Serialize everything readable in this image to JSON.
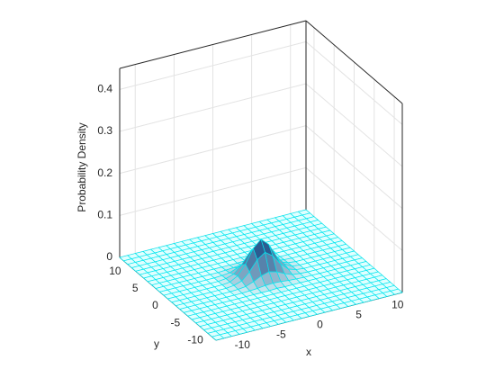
{
  "chart_data": {
    "type": "surface",
    "xlabel": "x",
    "ylabel": "y",
    "zlabel": "Probability Density",
    "x": [
      -12,
      -11,
      -10,
      -9,
      -8,
      -7,
      -6,
      -5,
      -4,
      -3,
      -2,
      -1,
      0,
      1,
      2,
      3,
      4,
      5,
      6,
      7,
      8,
      9,
      10,
      11,
      12
    ],
    "y": [
      -12,
      -11,
      -10,
      -9,
      -8,
      -7,
      -6,
      -5,
      -4,
      -3,
      -2,
      -1,
      0,
      1,
      2,
      3,
      4,
      5,
      6,
      7,
      8,
      9,
      10,
      11,
      12
    ],
    "z": [
      [
        0,
        0,
        0,
        0,
        0,
        0,
        0,
        0,
        0,
        0,
        0,
        0,
        0,
        0,
        0,
        0,
        0,
        0,
        0,
        0,
        0,
        0,
        0,
        0,
        0
      ],
      [
        0,
        0,
        0,
        0,
        0,
        0,
        0,
        0,
        0,
        0,
        0,
        0,
        0,
        0,
        0,
        0,
        0,
        0,
        0,
        0,
        0,
        0,
        0,
        0,
        0
      ],
      [
        0,
        0,
        0,
        0,
        0,
        0,
        0,
        0,
        0,
        0,
        0,
        0,
        0,
        0,
        0,
        0,
        0,
        0,
        0,
        0,
        0,
        0,
        0,
        0,
        0
      ],
      [
        0,
        0,
        0,
        0,
        0,
        0,
        0,
        0,
        0,
        0,
        0,
        0,
        0,
        0,
        0,
        0,
        0,
        0,
        0,
        0,
        0,
        0,
        0,
        0,
        0
      ],
      [
        0,
        0,
        0,
        0,
        0,
        0,
        0,
        0,
        0,
        0,
        0,
        0,
        0,
        0,
        0,
        0,
        0,
        0,
        0,
        0,
        0,
        0,
        0,
        0,
        0
      ],
      [
        0,
        0,
        0,
        0,
        0,
        0,
        0,
        0,
        0,
        0,
        0,
        0,
        0,
        0,
        0,
        0,
        0,
        0,
        0,
        0,
        0,
        0,
        0,
        0,
        0
      ],
      [
        0,
        0,
        0,
        0,
        0,
        0,
        0,
        0,
        0,
        0,
        0,
        0,
        0,
        0,
        0,
        0,
        0,
        0,
        0,
        0,
        0,
        0,
        0,
        0,
        0
      ],
      [
        0,
        0,
        0,
        0,
        0,
        0,
        0,
        0,
        0,
        0,
        0,
        0,
        0,
        0,
        0,
        0,
        0,
        0,
        0,
        0,
        0,
        0,
        0,
        0,
        0
      ],
      [
        0,
        0,
        0,
        0,
        0,
        0,
        0,
        0,
        0,
        0,
        0,
        0,
        0.001,
        0,
        0,
        0,
        0,
        0,
        0,
        0,
        0,
        0,
        0,
        0,
        0
      ],
      [
        0,
        0,
        0,
        0,
        0,
        0,
        0,
        0,
        0,
        0.001,
        0.002,
        0.004,
        0.005,
        0.004,
        0.002,
        0.001,
        0,
        0,
        0,
        0,
        0,
        0,
        0,
        0,
        0
      ],
      [
        0,
        0,
        0,
        0,
        0,
        0,
        0,
        0,
        0.001,
        0.003,
        0.01,
        0.019,
        0.024,
        0.019,
        0.01,
        0.003,
        0.001,
        0,
        0,
        0,
        0,
        0,
        0,
        0,
        0
      ],
      [
        0,
        0,
        0,
        0,
        0,
        0,
        0,
        0,
        0.002,
        0.008,
        0.025,
        0.049,
        0.062,
        0.049,
        0.025,
        0.008,
        0.002,
        0,
        0,
        0,
        0,
        0,
        0,
        0,
        0
      ],
      [
        0,
        0,
        0,
        0,
        0,
        0,
        0,
        0,
        0.002,
        0.012,
        0.035,
        0.068,
        0.085,
        0.068,
        0.035,
        0.012,
        0.002,
        0,
        0,
        0,
        0,
        0,
        0,
        0,
        0
      ],
      [
        0,
        0,
        0,
        0,
        0,
        0,
        0,
        0,
        0.002,
        0.008,
        0.025,
        0.049,
        0.062,
        0.049,
        0.025,
        0.008,
        0.002,
        0,
        0,
        0,
        0,
        0,
        0,
        0,
        0
      ],
      [
        0,
        0,
        0,
        0,
        0,
        0,
        0,
        0,
        0.001,
        0.003,
        0.01,
        0.019,
        0.024,
        0.019,
        0.01,
        0.003,
        0.001,
        0,
        0,
        0,
        0,
        0,
        0,
        0,
        0
      ],
      [
        0,
        0,
        0,
        0,
        0,
        0,
        0,
        0,
        0,
        0.001,
        0.002,
        0.004,
        0.005,
        0.004,
        0.002,
        0.001,
        0,
        0,
        0,
        0,
        0,
        0,
        0,
        0,
        0
      ],
      [
        0,
        0,
        0,
        0,
        0,
        0,
        0,
        0,
        0,
        0,
        0,
        0,
        0.001,
        0,
        0,
        0,
        0,
        0,
        0,
        0,
        0,
        0,
        0,
        0,
        0
      ],
      [
        0,
        0,
        0,
        0,
        0,
        0,
        0,
        0,
        0,
        0,
        0,
        0,
        0,
        0,
        0,
        0,
        0,
        0,
        0,
        0,
        0,
        0,
        0,
        0,
        0
      ],
      [
        0,
        0,
        0,
        0,
        0,
        0,
        0,
        0,
        0,
        0,
        0,
        0,
        0,
        0,
        0,
        0,
        0,
        0,
        0,
        0,
        0,
        0,
        0,
        0,
        0
      ],
      [
        0,
        0,
        0,
        0,
        0,
        0,
        0,
        0,
        0,
        0,
        0,
        0,
        0,
        0,
        0,
        0,
        0,
        0,
        0,
        0,
        0,
        0,
        0,
        0,
        0
      ],
      [
        0,
        0,
        0,
        0,
        0,
        0,
        0,
        0,
        0,
        0,
        0,
        0,
        0,
        0,
        0,
        0,
        0,
        0,
        0,
        0,
        0,
        0,
        0,
        0,
        0
      ],
      [
        0,
        0,
        0,
        0,
        0,
        0,
        0,
        0,
        0,
        0,
        0,
        0,
        0,
        0,
        0,
        0,
        0,
        0,
        0,
        0,
        0,
        0,
        0,
        0,
        0
      ],
      [
        0,
        0,
        0,
        0,
        0,
        0,
        0,
        0,
        0,
        0,
        0,
        0,
        0,
        0,
        0,
        0,
        0,
        0,
        0,
        0,
        0,
        0,
        0,
        0,
        0
      ],
      [
        0,
        0,
        0,
        0,
        0,
        0,
        0,
        0,
        0,
        0,
        0,
        0,
        0,
        0,
        0,
        0,
        0,
        0,
        0,
        0,
        0,
        0,
        0,
        0,
        0
      ],
      [
        0,
        0,
        0,
        0,
        0,
        0,
        0,
        0,
        0,
        0,
        0,
        0,
        0,
        0,
        0,
        0,
        0,
        0,
        0,
        0,
        0,
        0,
        0,
        0,
        0
      ]
    ],
    "xlim": [
      -12,
      12
    ],
    "ylim": [
      -12,
      12
    ],
    "zlim": [
      0,
      0.45
    ],
    "xticks": [
      -10,
      -5,
      0,
      5,
      10
    ],
    "yticks": [
      -10,
      -5,
      0,
      5,
      10
    ],
    "zticks": [
      0,
      0.1,
      0.2,
      0.3,
      0.4
    ],
    "grid": true,
    "edge_color": "#00e5ee"
  }
}
